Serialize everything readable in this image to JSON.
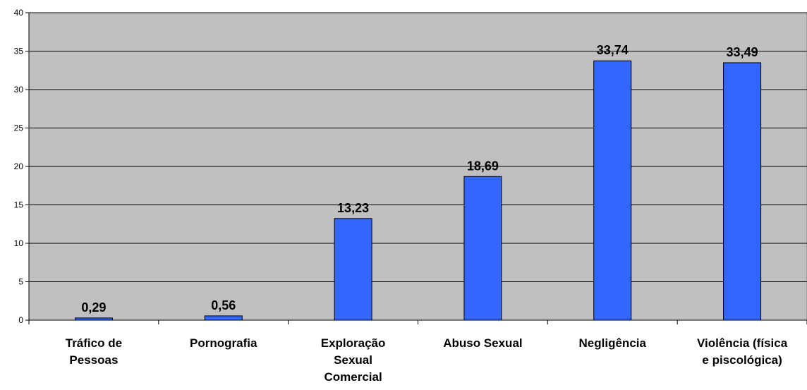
{
  "chart_data": {
    "type": "bar",
    "title": "",
    "xlabel": "",
    "ylabel": "",
    "categories": [
      [
        "Tráfico de",
        "Pessoas"
      ],
      [
        "Pornografia"
      ],
      [
        "Exploração",
        "Sexual",
        "Comercial"
      ],
      [
        "Abuso Sexual"
      ],
      [
        "Negligência"
      ],
      [
        "Violência (física",
        "e piscológica)"
      ]
    ],
    "values": [
      0.29,
      0.56,
      13.23,
      18.69,
      33.74,
      33.49
    ],
    "value_labels": [
      "0,29",
      "0,56",
      "13,23",
      "18,69",
      "33,74",
      "33,49"
    ],
    "ylim": [
      0,
      40
    ],
    "yticks": [
      0,
      5,
      10,
      15,
      20,
      25,
      30,
      35,
      40
    ],
    "grid": true,
    "legend": "none",
    "colors": {
      "bar": "#3366ff",
      "plot_background": "#c0c0c0",
      "gridline": "#000000"
    }
  }
}
